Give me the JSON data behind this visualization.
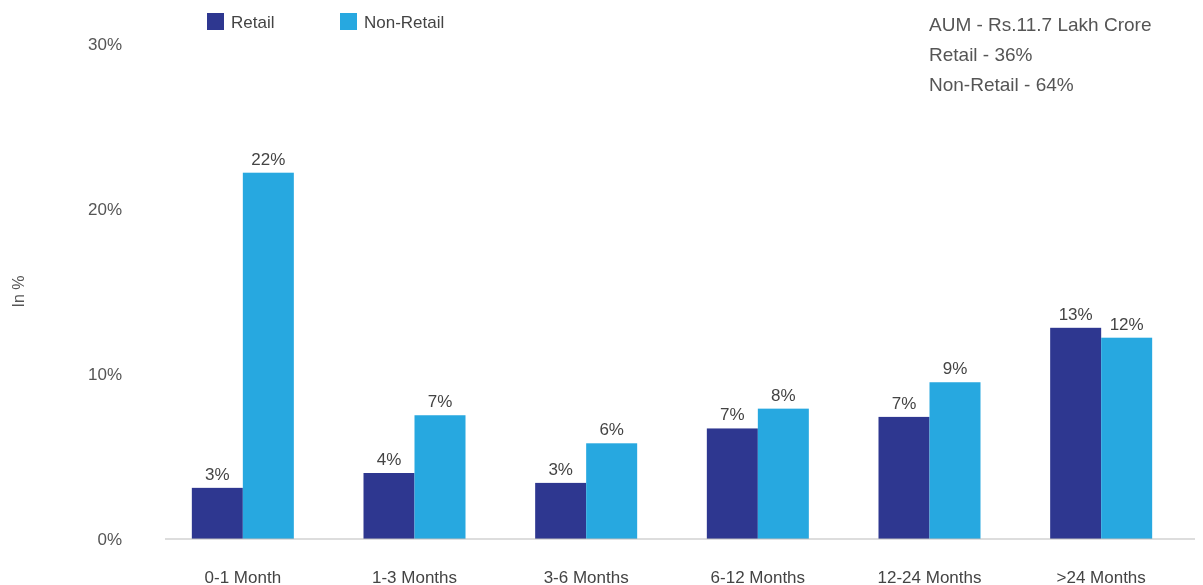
{
  "chart_data": {
    "type": "bar",
    "ylabel": "In %",
    "categories": [
      "0-1 Month",
      "1-3 Months",
      "3-6 Months",
      "6-12 Months",
      "12-24 Months",
      ">24 Months"
    ],
    "series": [
      {
        "name": "Retail",
        "color": "#2e3790",
        "values": [
          3.1,
          4.0,
          3.4,
          6.7,
          7.4,
          12.8
        ],
        "value_labels": [
          "3%",
          "4%",
          "3%",
          "7%",
          "7%",
          "13%"
        ]
      },
      {
        "name": "Non-Retail",
        "color": "#27a8e0",
        "values": [
          22.2,
          7.5,
          5.8,
          7.9,
          9.5,
          12.2
        ],
        "value_labels": [
          "22%",
          "7%",
          "6%",
          "8%",
          "9%",
          "12%"
        ]
      }
    ],
    "ylim": [
      0,
      30
    ],
    "yticks": [
      {
        "value": 0,
        "label": "0%"
      },
      {
        "value": 10,
        "label": "10%"
      },
      {
        "value": 20,
        "label": "20%"
      },
      {
        "value": 30,
        "label": "30%"
      }
    ],
    "legend": "top left",
    "grid": false,
    "annotations": [
      "AUM - Rs.11.7 Lakh Crore",
      "Retail - 36%",
      "Non-Retail - 64%"
    ]
  }
}
